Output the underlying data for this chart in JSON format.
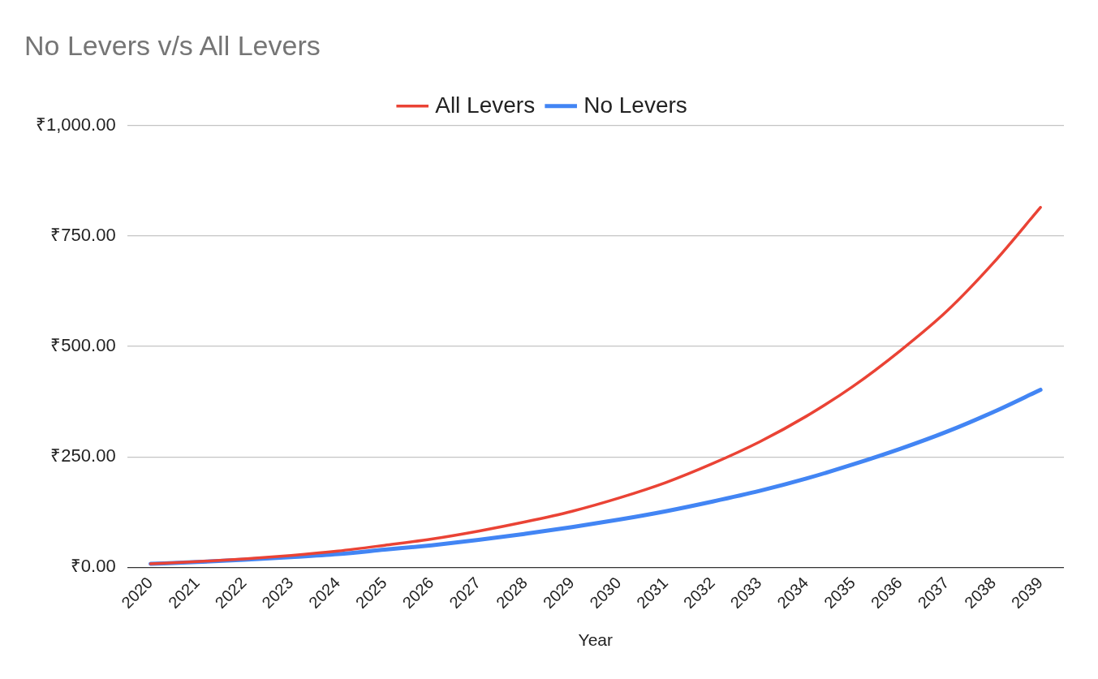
{
  "chart_data": {
    "type": "line",
    "title": "No Levers v/s All Levers",
    "xlabel": "Year",
    "categories": [
      "2020",
      "2021",
      "2022",
      "2023",
      "2024",
      "2025",
      "2026",
      "2027",
      "2028",
      "2029",
      "2030",
      "2031",
      "2032",
      "2033",
      "2034",
      "2035",
      "2036",
      "2037",
      "2038",
      "2039"
    ],
    "series": [
      {
        "name": "No Levers",
        "color": "#4285f4",
        "values": [
          8,
          12,
          17,
          23,
          30,
          40,
          50,
          62,
          76,
          91,
          108,
          127,
          149,
          173,
          201,
          233,
          268,
          307,
          352,
          402
        ]
      },
      {
        "name": "All Levers",
        "color": "#ea4335",
        "values": [
          8,
          13,
          19,
          27,
          37,
          50,
          64,
          82,
          103,
          127,
          157,
          192,
          235,
          284,
          342,
          410,
          490,
          580,
          690,
          815
        ]
      }
    ],
    "ylim": [
      0,
      1000
    ],
    "yticks": [
      {
        "value": 0,
        "label": "₹0.00"
      },
      {
        "value": 250,
        "label": "₹250.00"
      },
      {
        "value": 500,
        "label": "₹500.00"
      },
      {
        "value": 750,
        "label": "₹750.00"
      },
      {
        "value": 1000,
        "label": "₹1,000.00"
      }
    ],
    "grid": "y",
    "legend": "top",
    "marker": "none",
    "line_style": "solid"
  }
}
